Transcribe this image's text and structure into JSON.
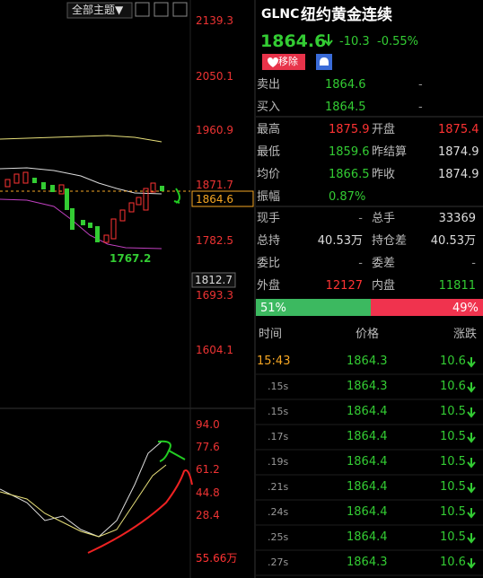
{
  "toolbar": {
    "theme": "全部主题▼"
  },
  "price_axis": [
    "2139.3",
    "2050.1",
    "1960.9",
    "1871.7",
    "1782.5",
    "1693.3",
    "1604.1"
  ],
  "price_tags": {
    "last": "1864.6",
    "cursor": "1812.7"
  },
  "low_label": "1767.2",
  "indicator_axis": [
    "94.0",
    "77.6",
    "61.2",
    "44.8",
    "28.4"
  ],
  "volume_label": "55.66万",
  "quote": {
    "symbol": "GLNC",
    "name": "纽约黄金连续",
    "price": "1864.6",
    "change": "-10.3",
    "change_pct": "-0.55%",
    "remove": "移除"
  },
  "order_book": [
    [
      "卖出",
      "1864.6",
      "-"
    ],
    [
      "买入",
      "1864.5",
      "-"
    ]
  ],
  "stats": [
    [
      "最高",
      "1875.9",
      "开盘",
      "1875.4"
    ],
    [
      "最低",
      "1859.6",
      "昨结算",
      "1874.9"
    ],
    [
      "均价",
      "1866.5",
      "昨收",
      "1874.9"
    ],
    [
      "振幅",
      "0.87%"
    ]
  ],
  "stats2": [
    [
      "现手",
      "-",
      "总手",
      "33369"
    ],
    [
      "总持",
      "40.53万",
      "持仓差",
      "40.53万"
    ],
    [
      "委比",
      "-",
      "委差",
      "-"
    ],
    [
      "外盘",
      "12127",
      "内盘",
      "11811"
    ]
  ],
  "ratio": {
    "buy": "51%",
    "sell": "49%"
  },
  "trades": {
    "header": [
      "时间",
      "价格",
      "涨跌"
    ],
    "rows": [
      [
        "15:43",
        "1864.3",
        "10.6"
      ],
      [
        ".15s",
        "1864.3",
        "10.6"
      ],
      [
        ".15s",
        "1864.4",
        "10.5"
      ],
      [
        ".17s",
        "1864.4",
        "10.5"
      ],
      [
        ".19s",
        "1864.4",
        "10.5"
      ],
      [
        ".21s",
        "1864.4",
        "10.5"
      ],
      [
        ".24s",
        "1864.4",
        "10.5"
      ],
      [
        ".25s",
        "1864.4",
        "10.5"
      ],
      [
        ".27s",
        "1864.3",
        "10.6"
      ]
    ]
  }
}
